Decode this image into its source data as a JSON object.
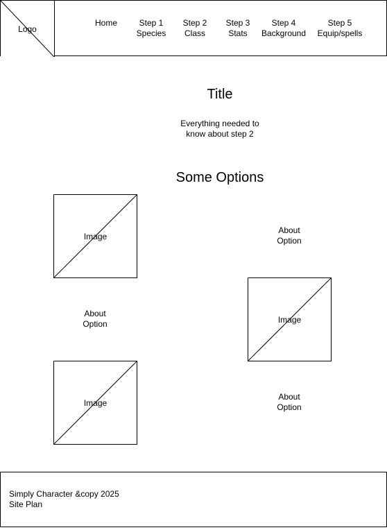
{
  "header": {
    "logo_label": "Logo",
    "nav": [
      {
        "label": "Home"
      },
      {
        "label": "Step 1\nSpecies"
      },
      {
        "label": "Step 2\nClass"
      },
      {
        "label": "Step 3\nStats"
      },
      {
        "label": "Step 4\nBackground"
      },
      {
        "label": "Step 5\nEquip/spells"
      }
    ]
  },
  "main": {
    "title": "Title",
    "intro": "Everything needed to\nknow about step 2",
    "options_heading": "Some Options",
    "options": [
      {
        "image_label": "Image",
        "about": "About\nOption"
      },
      {
        "image_label": "Image",
        "about": "About\nOption"
      },
      {
        "image_label": "Image",
        "about": "About\nOption"
      }
    ]
  },
  "footer": {
    "text": "Simply Character &copy 2025\nSite Plan"
  }
}
